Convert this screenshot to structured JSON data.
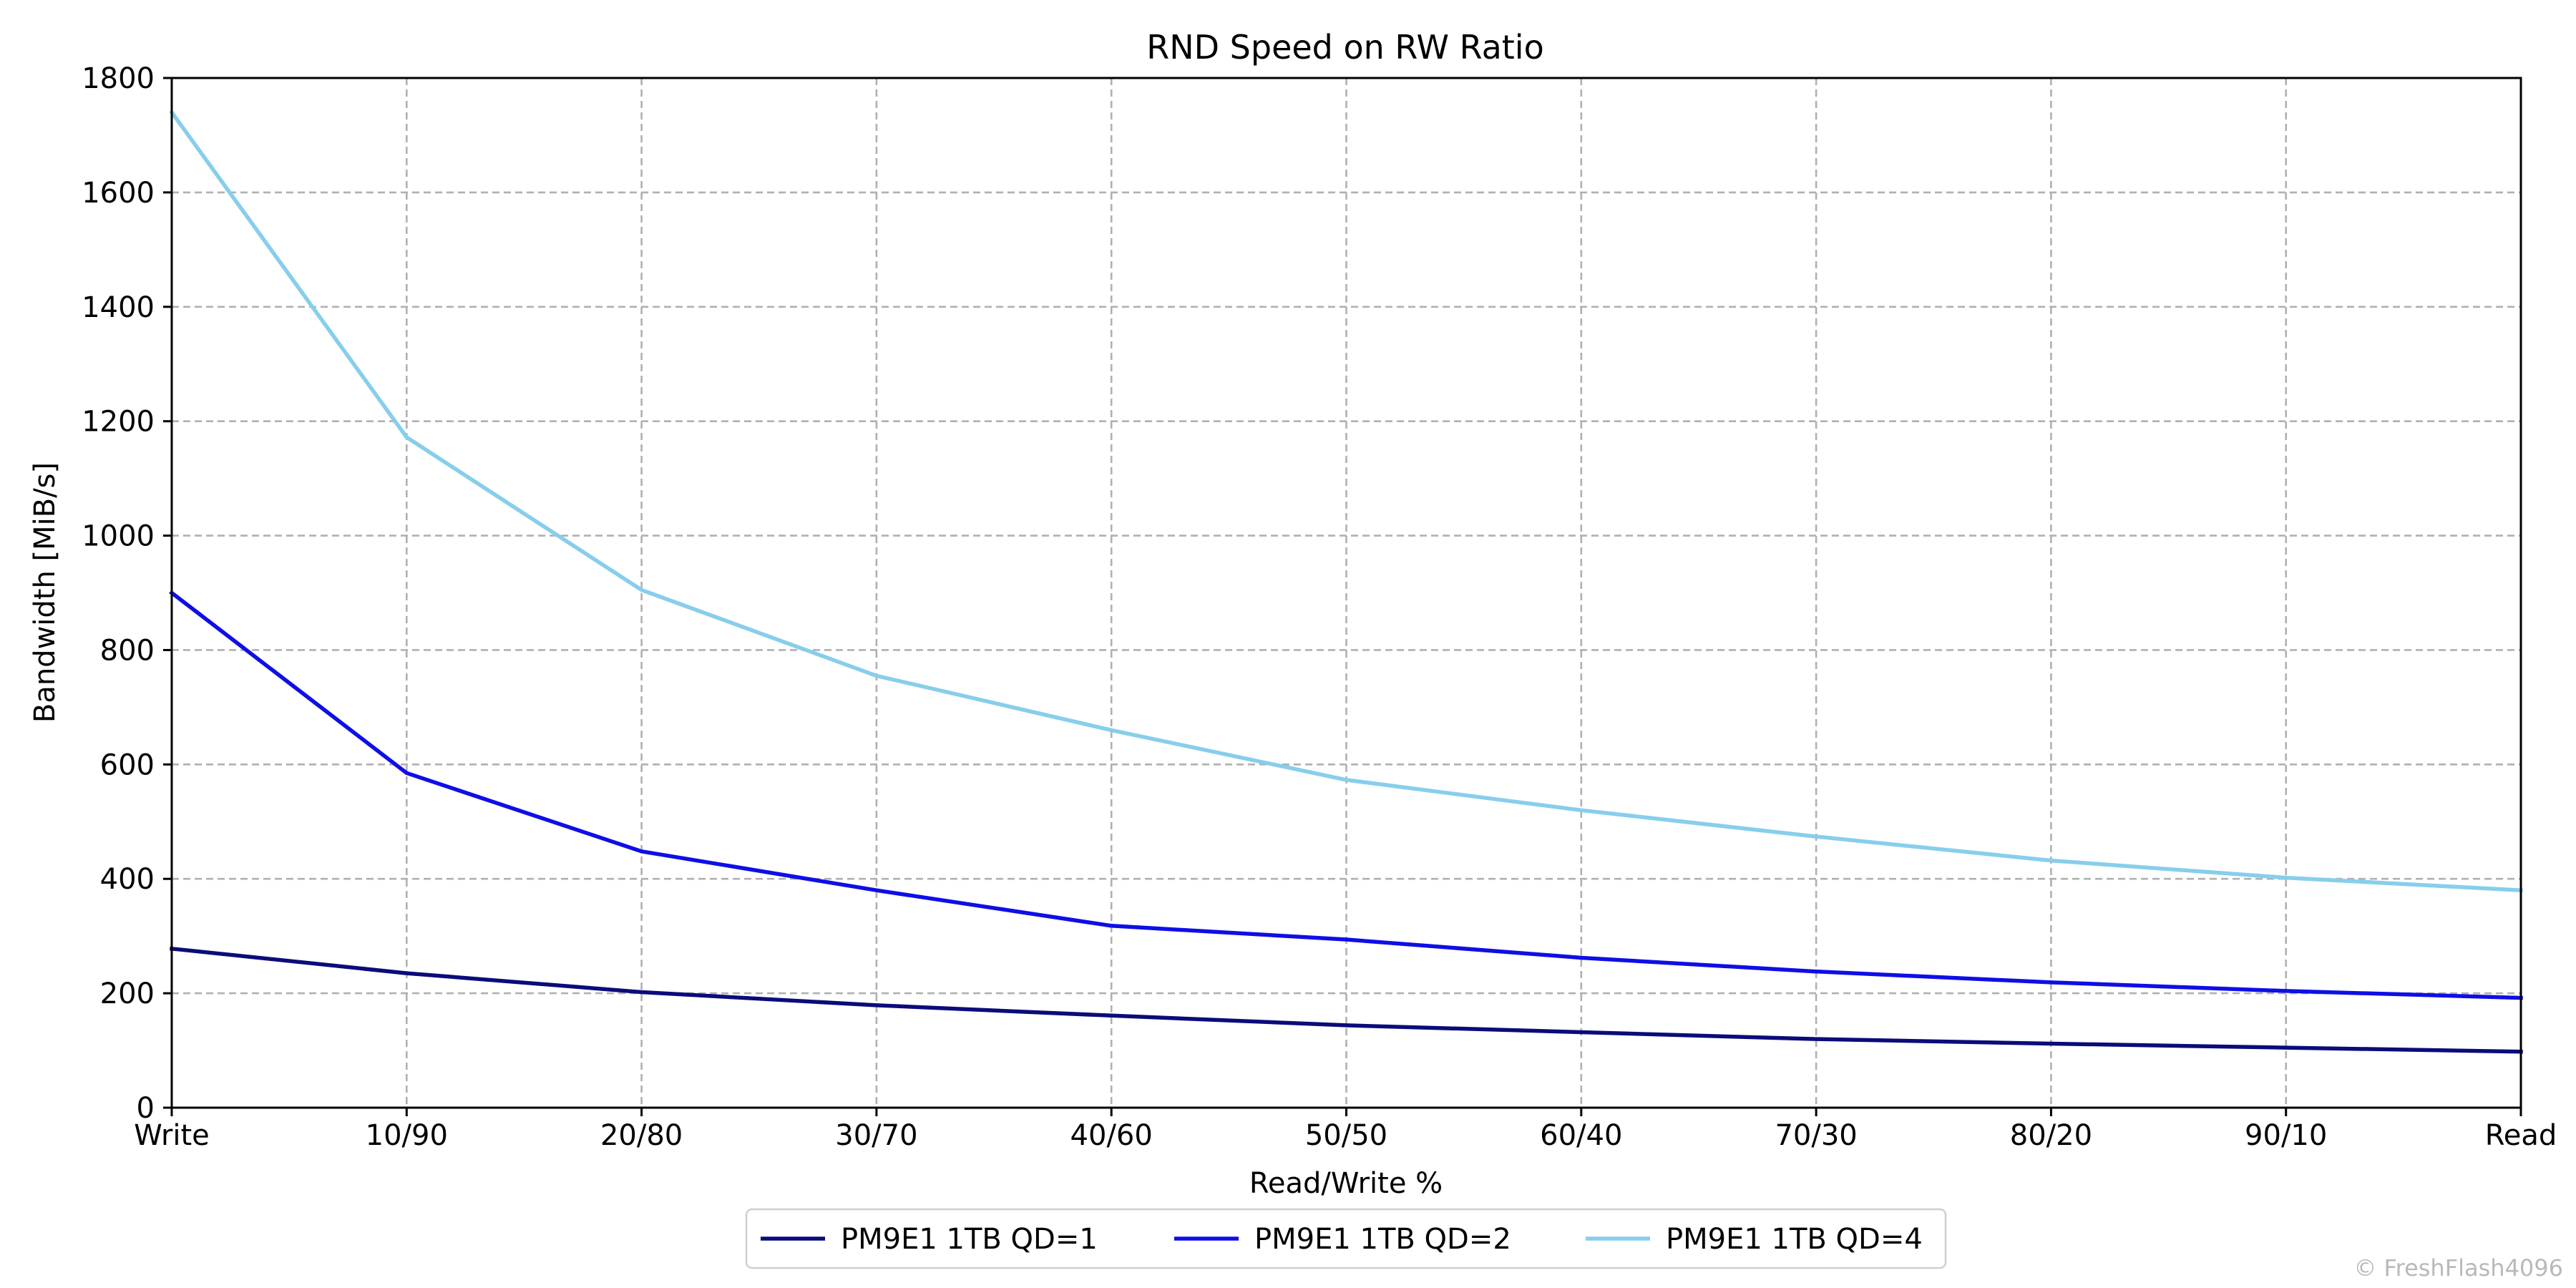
{
  "chart_data": {
    "type": "line",
    "title": "RND Speed on RW Ratio",
    "xlabel": "Read/Write %",
    "ylabel": "Bandwidth [MiB/s]",
    "categories": [
      "Write",
      "10/90",
      "20/80",
      "30/70",
      "40/60",
      "50/50",
      "60/40",
      "70/30",
      "80/20",
      "90/10",
      "Read"
    ],
    "ylim": [
      0,
      1800
    ],
    "yticks": [
      0,
      200,
      400,
      600,
      800,
      1000,
      1200,
      1400,
      1600,
      1800
    ],
    "grid": true,
    "legend_position": "bottom-center",
    "series": [
      {
        "name": "PM9E1 1TB QD=1",
        "color": "#0b0b7a",
        "values": [
          278,
          235,
          202,
          179,
          161,
          144,
          132,
          120,
          112,
          105,
          98
        ]
      },
      {
        "name": "PM9E1 1TB QD=2",
        "color": "#0e0ee6",
        "values": [
          900,
          585,
          448,
          380,
          318,
          294,
          262,
          238,
          219,
          204,
          192
        ]
      },
      {
        "name": "PM9E1 1TB QD=4",
        "color": "#87ceeb",
        "values": [
          1740,
          1172,
          905,
          755,
          660,
          573,
          520,
          474,
          432,
          402,
          380
        ]
      }
    ]
  },
  "watermark": "© FreshFlash4096"
}
